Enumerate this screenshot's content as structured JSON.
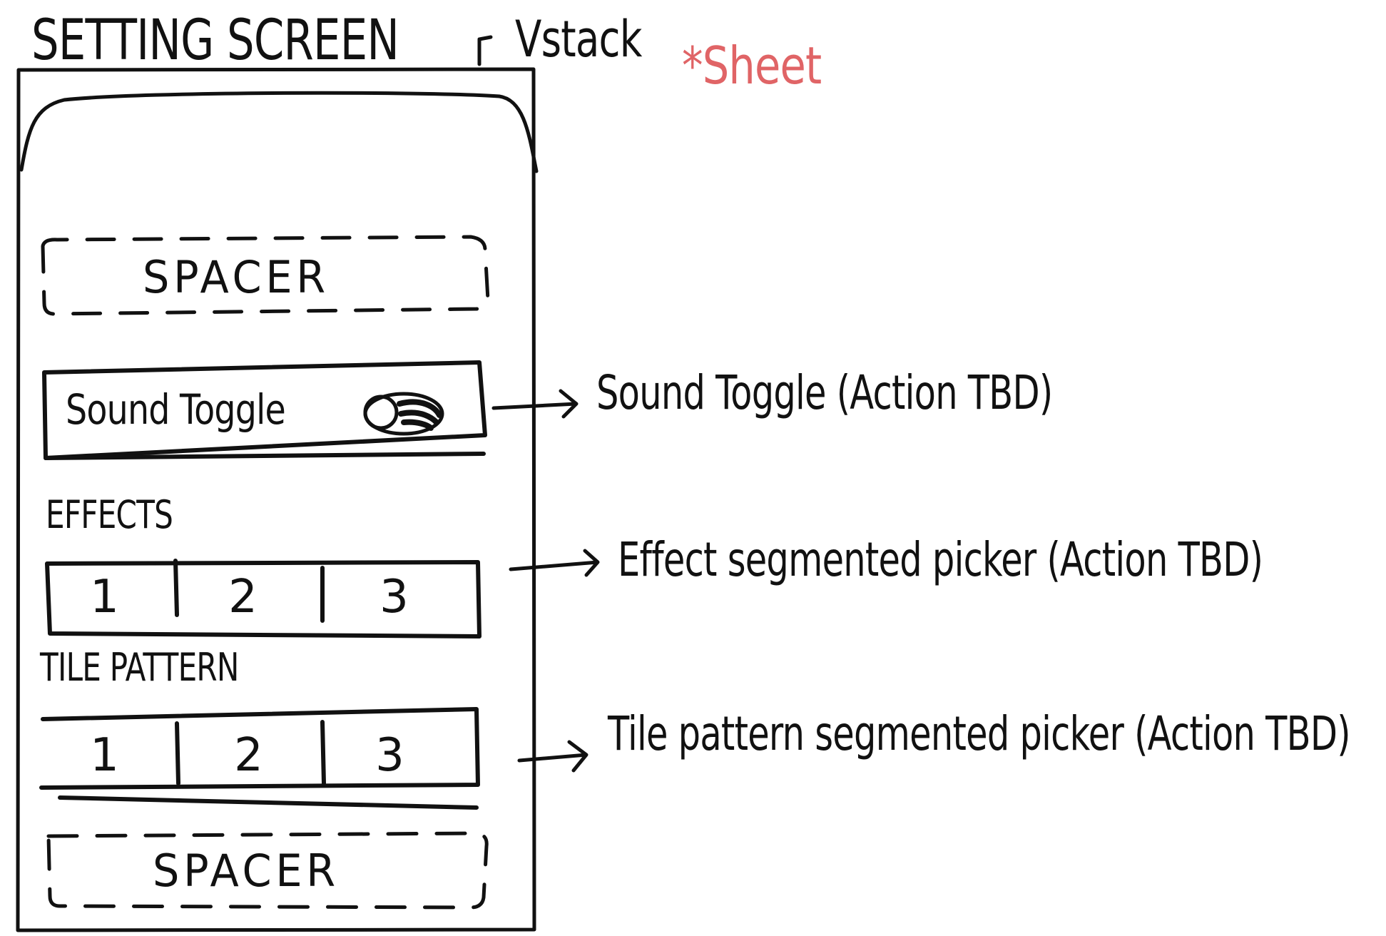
{
  "title": "SETTING SCREEN",
  "container_label": "Vstack",
  "presentation_note": "*Sheet",
  "spacer_top": {
    "label": "SPACER"
  },
  "sound_row": {
    "label": "Sound Toggle",
    "toggle_on": true
  },
  "effects": {
    "section_label": "EFFECTS",
    "segments": [
      "1",
      "2",
      "3"
    ]
  },
  "tile_pattern": {
    "section_label": "TILE PATTERN",
    "segments": [
      "1",
      "2",
      "3"
    ]
  },
  "spacer_bottom": {
    "label": "SPACER"
  },
  "annotations": {
    "sound": "Sound Toggle (Action TBD)",
    "effects": "Effect segmented picker (Action TBD)",
    "tile": "Tile pattern segmented picker (Action TBD)"
  },
  "colors": {
    "ink": "#111111",
    "accent": "#e06466"
  }
}
